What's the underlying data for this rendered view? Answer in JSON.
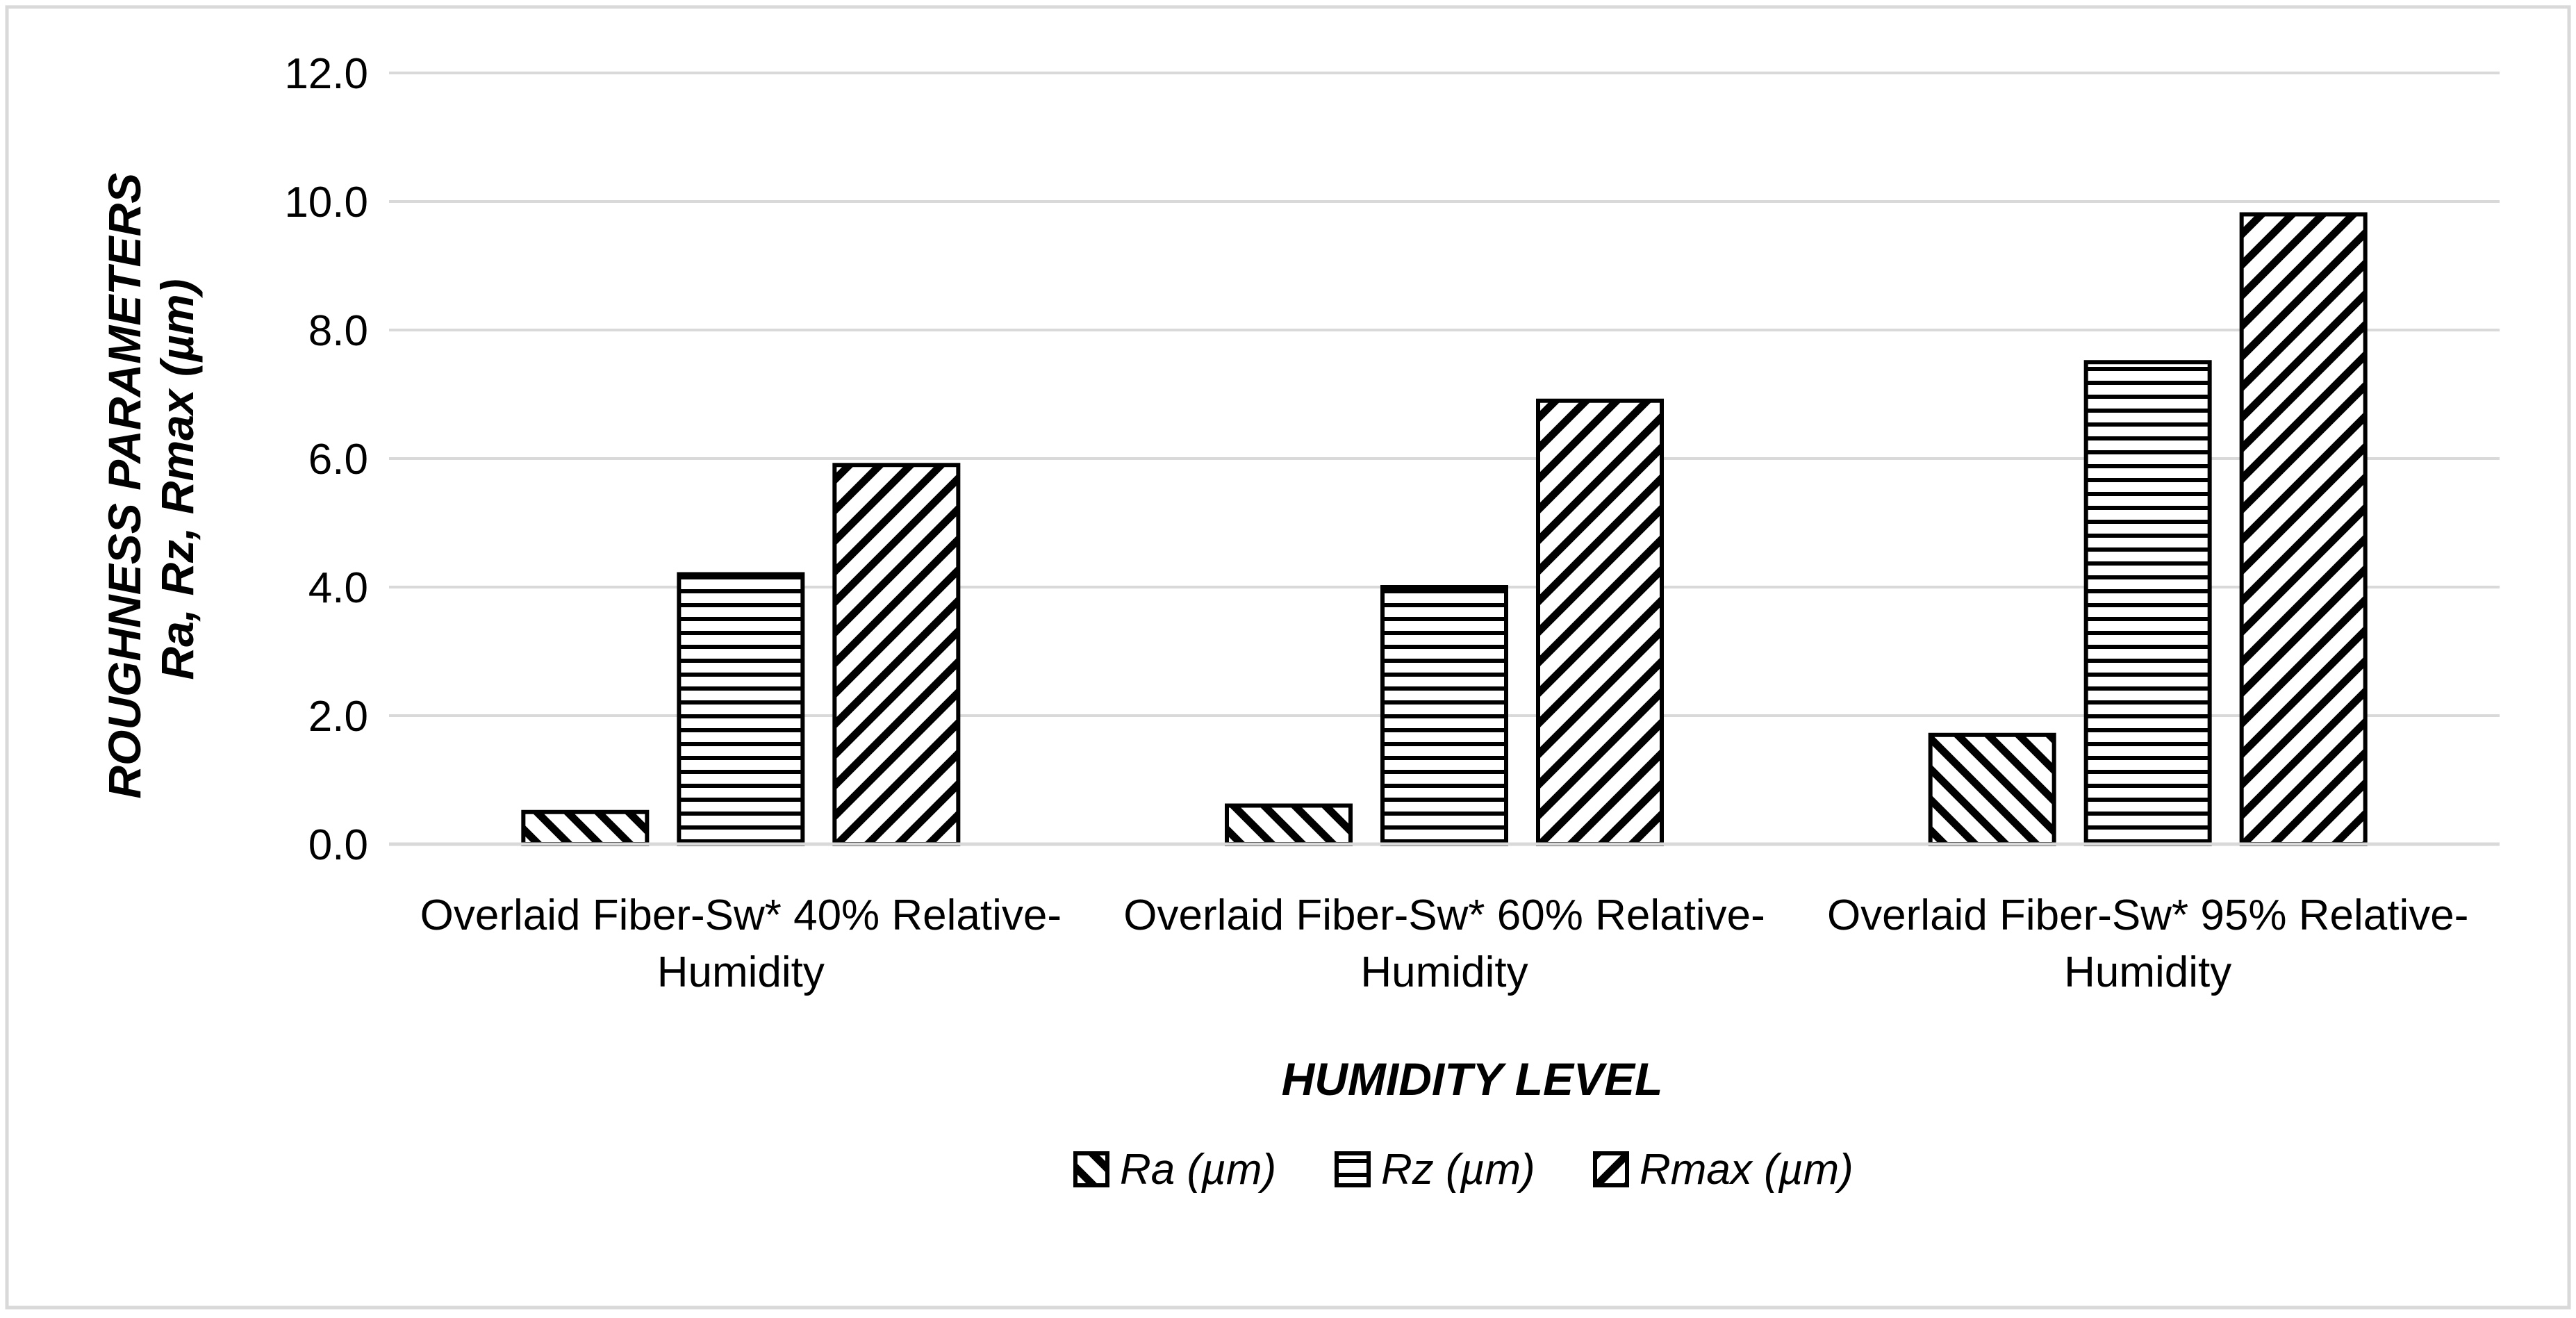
{
  "chart_data": {
    "type": "bar",
    "title": "",
    "categories": [
      [
        "Overlaid Fiber-Sw* 40% Relative-",
        "Humidity"
      ],
      [
        "Overlaid Fiber-Sw* 60% Relative-",
        "Humidity"
      ],
      [
        "Overlaid Fiber-Sw* 95% Relative-",
        "Humidity"
      ]
    ],
    "series": [
      {
        "name": "Ra (µm)",
        "pattern": "diag-down",
        "values": [
          0.5,
          0.6,
          1.7
        ]
      },
      {
        "name": "Rz (µm)",
        "pattern": "horizontal",
        "values": [
          4.2,
          4.0,
          7.5
        ]
      },
      {
        "name": "Rmax (µm)",
        "pattern": "diag-up",
        "values": [
          5.9,
          6.9,
          9.8
        ]
      }
    ],
    "xlabel": "HUMIDITY LEVEL",
    "ylabel": [
      "ROUGHNESS PARAMETERS",
      "Ra, Rz, Rmax (µm)"
    ],
    "ylim": [
      0,
      12
    ],
    "yticks": [
      "0.0",
      "2.0",
      "4.0",
      "6.0",
      "8.0",
      "10.0",
      "12.0"
    ],
    "grid": true,
    "legend_position": "bottom",
    "colors": {
      "bar_stroke": "#000000",
      "grid": "#d9d9d9",
      "text": "#000000",
      "frame": "#d9d9d9"
    }
  }
}
